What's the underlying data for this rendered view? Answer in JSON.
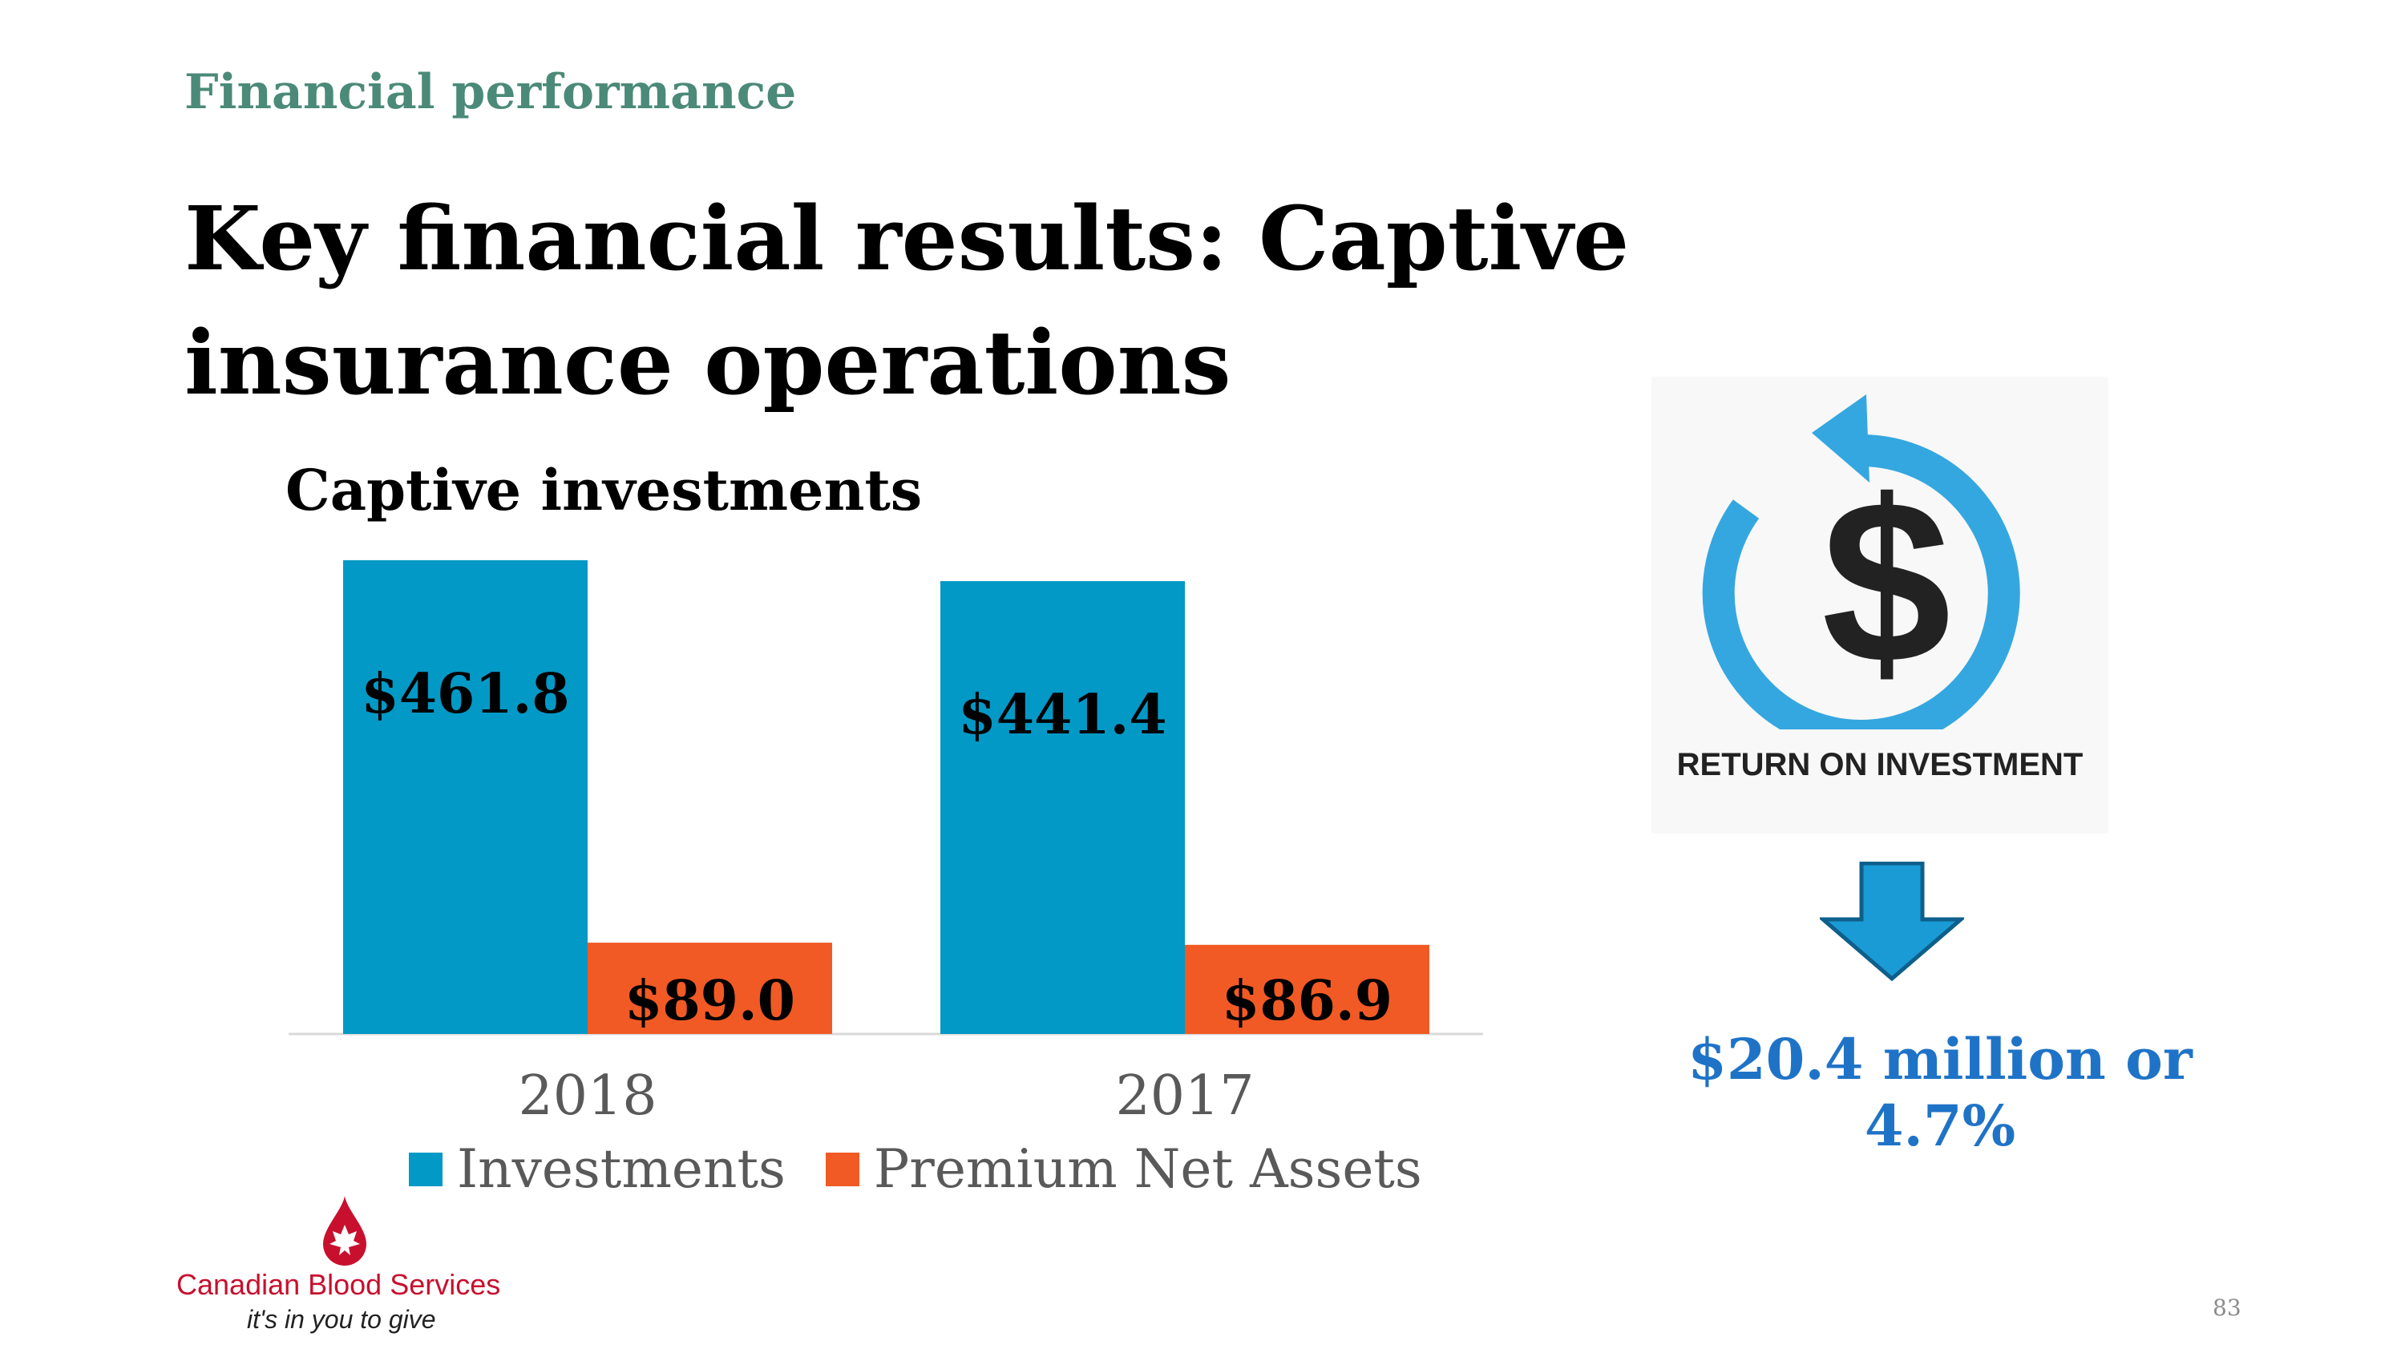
{
  "slide": {
    "section": "Financial performance",
    "title": "Key financial results: Captive insurance operations",
    "page_number": "83"
  },
  "chart_data": {
    "type": "bar",
    "title": "Captive investments",
    "categories": [
      "2018",
      "2017"
    ],
    "series": [
      {
        "name": "Investments",
        "values": [
          461.8,
          441.4
        ],
        "labels": [
          "$461.8",
          "$441.4"
        ],
        "color": "#0399c6"
      },
      {
        "name": "Premium Net Assets",
        "values": [
          89.0,
          86.9
        ],
        "labels": [
          "$89.0",
          "$86.9"
        ],
        "color": "#f15a24"
      }
    ],
    "ylim": [
      0,
      500
    ],
    "grid": false,
    "legend": "bottom"
  },
  "roi": {
    "icon": "return-on-investment-icon",
    "caption": "RETURN ON INVESTMENT",
    "arrow": "arrow-down-icon",
    "result": "$20.4 million or 4.7%",
    "accent_color": "#1f73c7"
  },
  "logo": {
    "name": "Canadian Blood Services",
    "tagline": "it's in you to give",
    "icon": "maple-leaf-drop-icon",
    "color": "#c8102e"
  }
}
